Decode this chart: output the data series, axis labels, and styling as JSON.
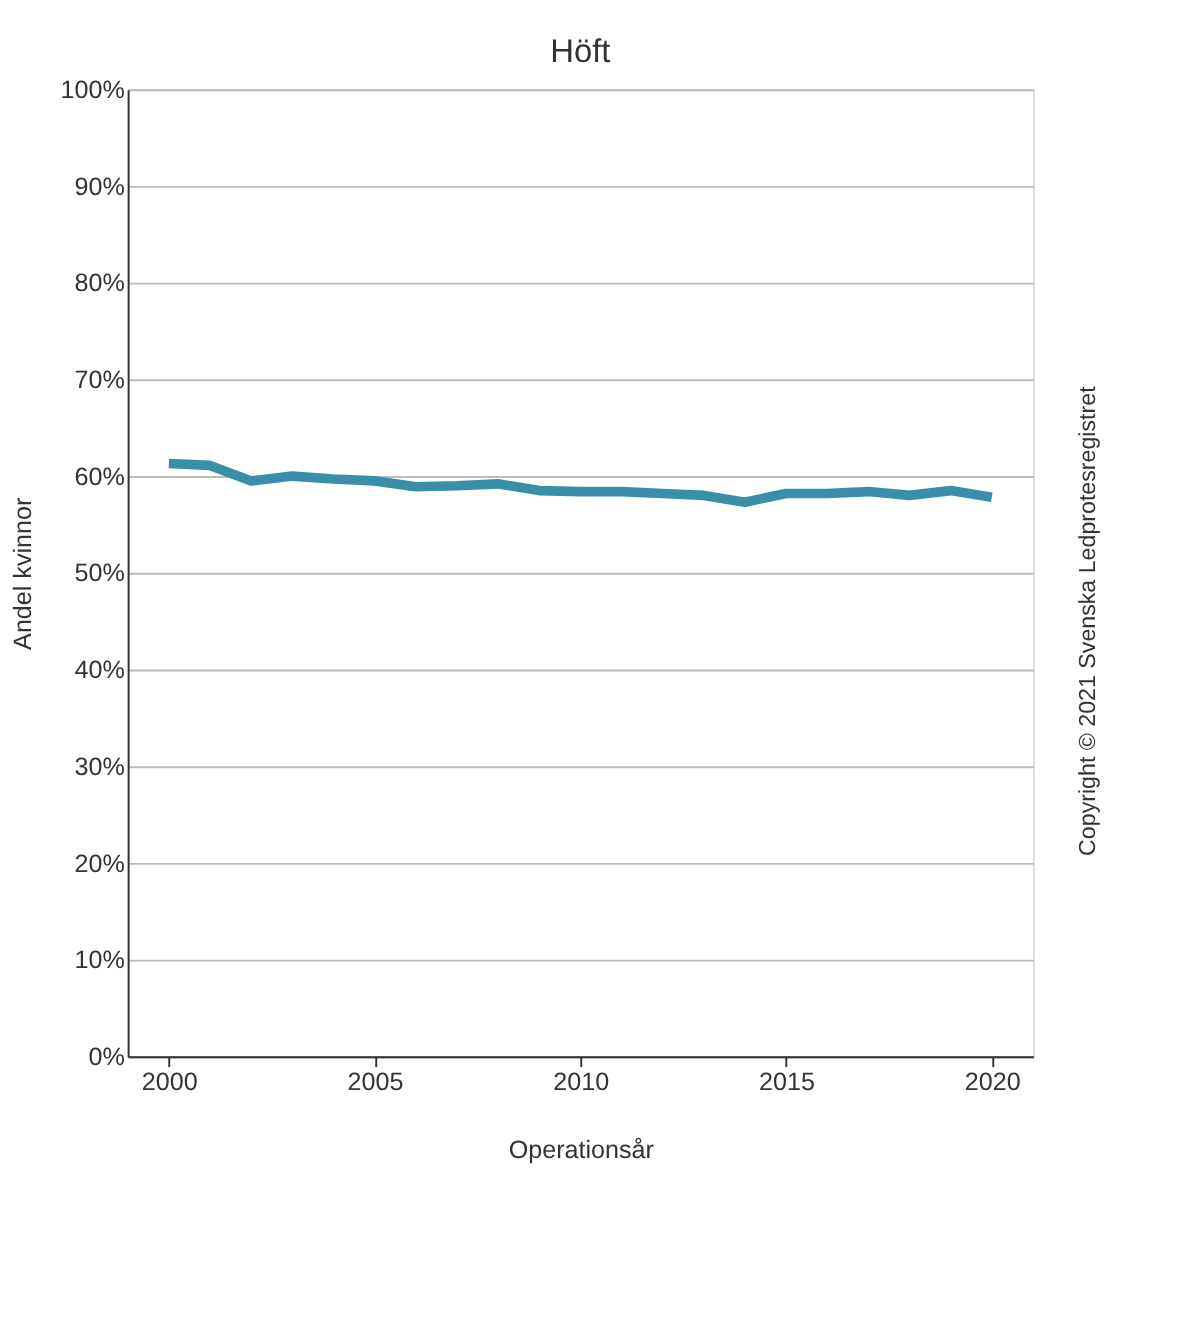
{
  "chart_data": {
    "type": "line",
    "title": "Höft",
    "xlabel": "Operationsår",
    "ylabel": "Andel kvinnor",
    "x": [
      2000,
      2001,
      2002,
      2003,
      2004,
      2005,
      2006,
      2007,
      2008,
      2009,
      2010,
      2011,
      2012,
      2013,
      2014,
      2015,
      2016,
      2017,
      2018,
      2019,
      2020
    ],
    "series": [
      {
        "color": "#3a8fa8",
        "values": [
          61.3,
          61.1,
          59.5,
          60.0,
          59.7,
          59.5,
          58.9,
          59.0,
          59.2,
          58.5,
          58.4,
          58.4,
          58.2,
          58.0,
          57.3,
          58.2,
          58.2,
          58.4,
          58.0,
          58.5,
          57.8
        ]
      }
    ],
    "xlim": [
      1999,
      2021
    ],
    "xticks": [
      2000,
      2005,
      2010,
      2015,
      2020
    ],
    "ylim": [
      0,
      100
    ],
    "yticks": [
      {
        "value": 0,
        "label": "0%"
      },
      {
        "value": 10,
        "label": "10%"
      },
      {
        "value": 20,
        "label": "20%"
      },
      {
        "value": 30,
        "label": "30%"
      },
      {
        "value": 40,
        "label": "40%"
      },
      {
        "value": 50,
        "label": "50%"
      },
      {
        "value": 60,
        "label": "60%"
      },
      {
        "value": 70,
        "label": "70%"
      },
      {
        "value": 80,
        "label": "80%"
      },
      {
        "value": 90,
        "label": "90%"
      },
      {
        "value": 100,
        "label": "100%"
      }
    ],
    "grid": "y",
    "marker": "none",
    "line_style": "solid",
    "annotations": [
      "Copyright © 2021 Svenska Ledprotesregistret"
    ]
  }
}
